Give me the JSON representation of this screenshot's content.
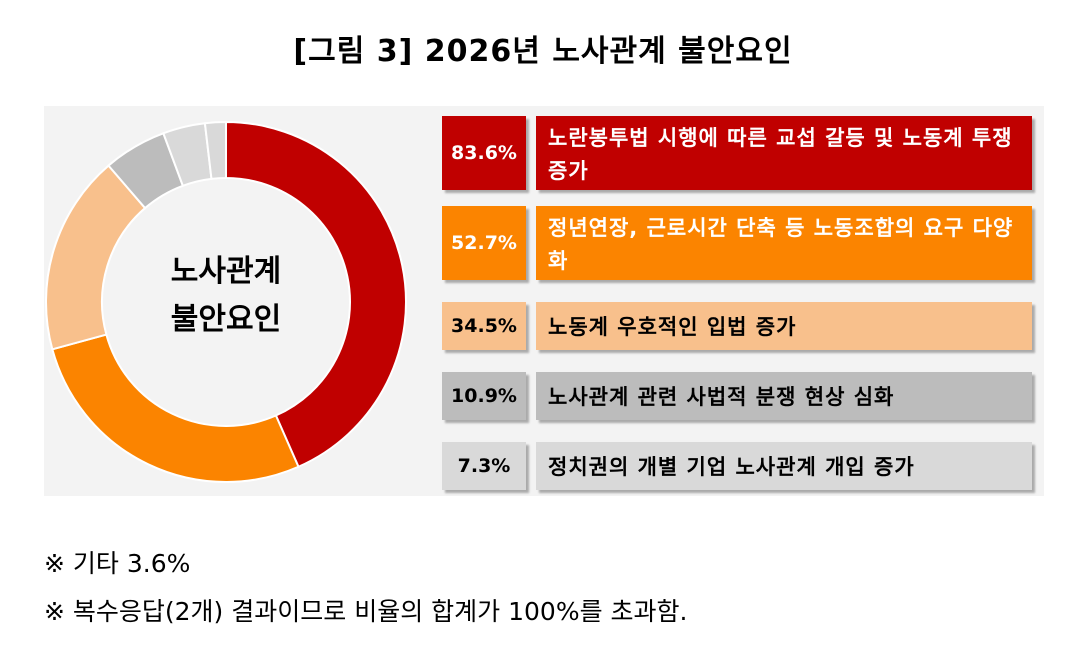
{
  "title": "[그림 3] 2026년 노사관계 불안요인",
  "center_label_line1": "노사관계",
  "center_label_line2": "불안요인",
  "notes": [
    "※ 기타 3.6%",
    "※ 복수응답(2개) 결과이므로 비율의 합계가 100%를 초과함."
  ],
  "chart_data": {
    "type": "pie",
    "style": "donut",
    "title": "[그림 3] 2026년 노사관계 불안요인",
    "unit": "%",
    "categories": [
      "노란봉투법 시행에 따른 교섭 갈등 및 노동계 투쟁 증가",
      "정년연장, 근로시간 단축 등 노동조합의 요구 다양화",
      "노동계 우호적인 입법 증가",
      "노사관계 관련 사법적 분쟁 현상 심화",
      "정치권의 개별 기업 노사관계 개입 증가",
      "기타"
    ],
    "values": [
      83.6,
      52.7,
      34.5,
      10.9,
      7.3,
      3.6
    ],
    "labels": [
      "83.6%",
      "52.7%",
      "34.5%",
      "10.9%",
      "7.3%",
      "3.6%"
    ],
    "colors": [
      "#c00000",
      "#fb8400",
      "#f8c08c",
      "#bcbcbc",
      "#d9d9d9",
      "#d9d9d9"
    ],
    "text_colors": [
      "#ffffff",
      "#ffffff",
      "#000000",
      "#000000",
      "#000000",
      "#000000"
    ]
  }
}
